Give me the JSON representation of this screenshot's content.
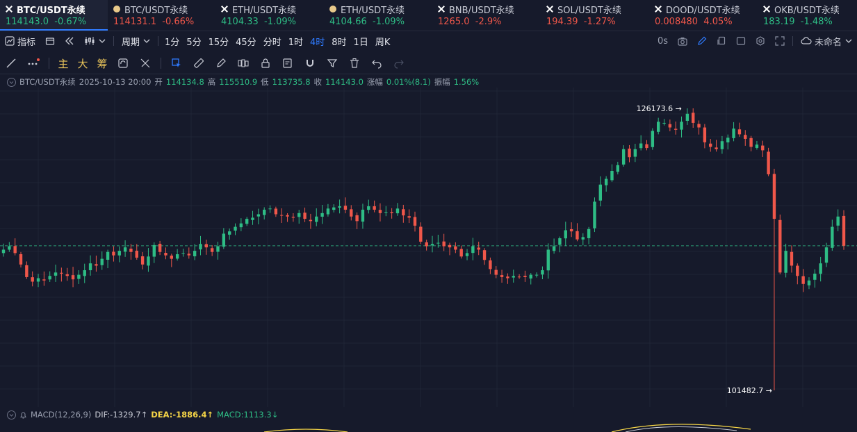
{
  "tabs": [
    {
      "name": "BTC/USDT永续",
      "price": "114143.0",
      "change": "-0.67%",
      "icon": "x-icon",
      "price_dir": "up",
      "change_dir": "up",
      "active": true,
      "width": 155
    },
    {
      "name": "BTC/USDT永续",
      "price": "114131.1",
      "change": "-0.66%",
      "icon": "coin-icon",
      "price_dir": "down",
      "change_dir": "down",
      "active": false,
      "width": 155
    },
    {
      "name": "ETH/USDT永续",
      "price": "4104.33",
      "change": "-1.09%",
      "icon": "x-icon",
      "price_dir": "up",
      "change_dir": "up",
      "active": false,
      "width": 156
    },
    {
      "name": "ETH/USDT永续",
      "price": "4104.66",
      "change": "-1.09%",
      "icon": "coin-icon",
      "price_dir": "up",
      "change_dir": "up",
      "active": false,
      "width": 156
    },
    {
      "name": "BNB/USDT永续",
      "price": "1265.0",
      "change": "-2.9%",
      "icon": "x-icon",
      "price_dir": "down",
      "change_dir": "down",
      "active": false,
      "width": 156
    },
    {
      "name": "SOL/USDT永续",
      "price": "194.39",
      "change": "-1.27%",
      "icon": "x-icon",
      "price_dir": "down",
      "change_dir": "down",
      "active": false,
      "width": 156
    },
    {
      "name": "DOOD/USDT永续",
      "price": "0.008480",
      "change": "4.05%",
      "icon": "x-icon",
      "price_dir": "down",
      "change_dir": "down",
      "active": false,
      "width": 156
    },
    {
      "name": "OKB/USDT永续",
      "price": "183.19",
      "change": "-1.48%",
      "icon": "x-icon",
      "price_dir": "up",
      "change_dir": "up",
      "active": false,
      "width": 143
    }
  ],
  "toolbar": {
    "indicator_label": "指标",
    "period_label": "周期",
    "intervals": [
      "1分",
      "5分",
      "15分",
      "45分",
      "分时",
      "1时",
      "4时",
      "8时",
      "1日",
      "周K"
    ],
    "selected_interval": "4时",
    "countdown": "0s",
    "layout_name": "未命名"
  },
  "draw_toolbar": {
    "main_label": "主",
    "da_label": "大",
    "chou_label": "筹"
  },
  "ohlc": {
    "symbol": "BTC/USDT永续",
    "datetime": "2025-10-13 20:00",
    "open_label": "开",
    "open": "114134.8",
    "high_label": "高",
    "high": "115510.9",
    "low_label": "低",
    "low": "113735.8",
    "close_label": "收",
    "close": "114143.0",
    "change_label": "涨幅",
    "change": "0.01%(8.1)",
    "amplitude_label": "振幅",
    "amplitude": "1.56%"
  },
  "macd": {
    "label": "MACD(12,26,9)",
    "dif": "DIF:-1329.7↑",
    "dea": "DEA:-1886.4↑",
    "macd": "MACD:1113.3↓"
  },
  "chart_data": {
    "type": "candlestick",
    "high_marker": "126173.6 →",
    "low_marker": "101482.7 →",
    "high_value": 126173.6,
    "low_value": 101482.7,
    "last_price": 114143.0,
    "up_color": "#2ebd85",
    "down_color": "#f0574a",
    "closes": [
      113800,
      114100,
      113500,
      112500,
      111400,
      111000,
      111300,
      111100,
      111500,
      111800,
      111700,
      111500,
      111200,
      111600,
      112000,
      112600,
      112400,
      113000,
      113600,
      113300,
      113700,
      114000,
      113600,
      113100,
      112500,
      113200,
      114200,
      113600,
      113300,
      113000,
      113400,
      113500,
      113300,
      113700,
      114300,
      114000,
      113600,
      114100,
      115200,
      115400,
      115800,
      116100,
      116500,
      116600,
      116900,
      117300,
      117400,
      116900,
      116800,
      116700,
      116600,
      117000,
      116500,
      116300,
      116700,
      117000,
      117400,
      117500,
      117600,
      117300,
      116700,
      116300,
      117300,
      117600,
      117300,
      117000,
      117100,
      117000,
      117400,
      116800,
      116600,
      115900,
      114500,
      114100,
      114300,
      114400,
      114100,
      114000,
      113800,
      113200,
      113500,
      114100,
      113800,
      112900,
      112100,
      111600,
      111400,
      111300,
      111500,
      111400,
      111400,
      111600,
      111600,
      112000,
      113800,
      114100,
      114800,
      115500,
      115400,
      114700,
      114900,
      115600,
      118000,
      119500,
      120000,
      120700,
      121200,
      122600,
      121900,
      122600,
      123100,
      122700,
      124200,
      125000,
      124900,
      124500,
      124300,
      125000,
      125700,
      124900,
      124500,
      123200,
      122800,
      122600,
      123300,
      123600,
      124400,
      123900,
      123500,
      122800,
      123000,
      122500,
      120400,
      116500,
      111800,
      113700,
      112400,
      111500,
      110800,
      111100,
      111700,
      112600,
      114000,
      115800,
      116700,
      114143
    ]
  }
}
